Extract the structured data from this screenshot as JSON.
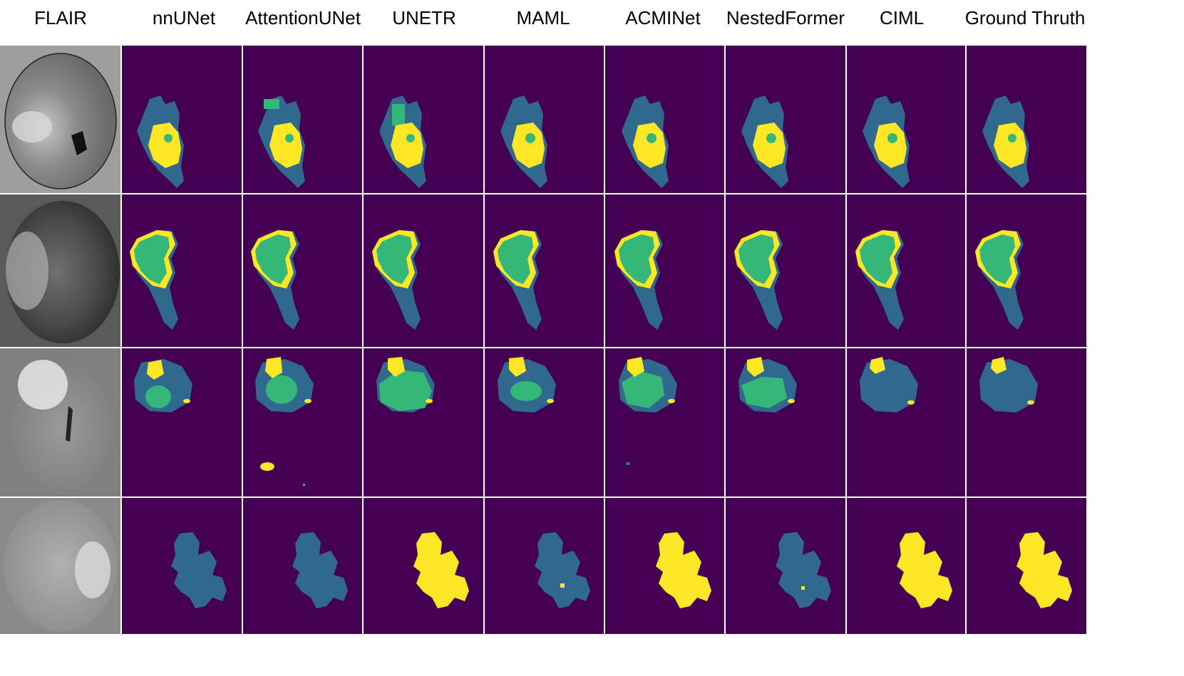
{
  "columns": [
    "FLAIR",
    "nnUNet",
    "AttentionUNet",
    "UNETR",
    "MAML",
    "ACMINet",
    "NestedFormer",
    "CIML",
    "Ground Thruth"
  ],
  "colors": {
    "background": "#440154",
    "edema": "#31688e",
    "necrotic": "#35b779",
    "enhancing": "#fde725",
    "separator": "#ffffff"
  },
  "rows": [
    {
      "row": 1,
      "flair": "axial FLAIR slice",
      "cells": [
        "edema+enhancing",
        "edema+enhancing+necrotic",
        "edema+enhancing+necrotic",
        "edema+enhancing",
        "edema+enhancing",
        "edema+enhancing",
        "edema+enhancing",
        "edema+enhancing"
      ]
    },
    {
      "row": 2,
      "flair": "axial FLAIR slice",
      "cells": [
        "necrotic+enhancing+edema",
        "necrotic+enhancing+edema",
        "necrotic+enhancing+edema",
        "necrotic+enhancing+edema",
        "necrotic+enhancing+edema",
        "necrotic+enhancing+edema",
        "necrotic+enhancing+edema",
        "necrotic+enhancing+edema"
      ]
    },
    {
      "row": 3,
      "flair": "axial FLAIR slice",
      "cells": [
        "edema+necrotic+enhancing",
        "edema+necrotic+enhancing",
        "edema+necrotic+enhancing",
        "edema+necrotic+enhancing",
        "edema+necrotic+enhancing",
        "edema+necrotic+enhancing",
        "edema+enhancing",
        "edema+enhancing"
      ]
    },
    {
      "row": 4,
      "flair": "axial FLAIR slice",
      "cells": [
        "edema",
        "edema",
        "enhancing",
        "edema",
        "enhancing",
        "edema",
        "enhancing",
        "enhancing"
      ]
    }
  ]
}
